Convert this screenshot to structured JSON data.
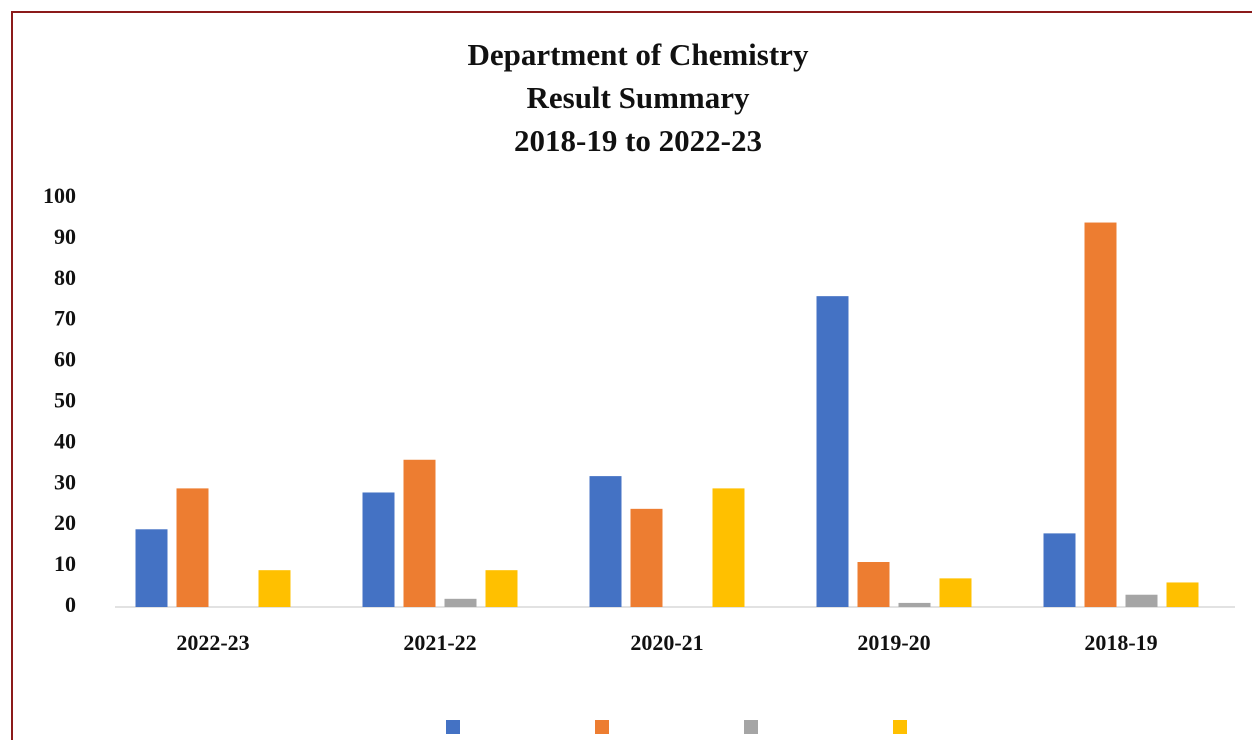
{
  "chart_data": {
    "type": "bar",
    "title": [
      "Department of Chemistry",
      "Result Summary",
      "2018-19 to 2022-23"
    ],
    "categories": [
      "2022-23",
      "2021-22",
      "2020-21",
      "2019-20",
      "2018-19"
    ],
    "series": [
      {
        "color": "#4472c4",
        "values": [
          19,
          28,
          32,
          76,
          18
        ]
      },
      {
        "color": "#ed7d31",
        "values": [
          29,
          36,
          24,
          11,
          94
        ]
      },
      {
        "color": "#a5a5a5",
        "values": [
          0,
          2,
          0,
          1,
          3
        ]
      },
      {
        "color": "#ffc000",
        "values": [
          9,
          9,
          29,
          7,
          6
        ]
      }
    ],
    "ylim": [
      0,
      100
    ],
    "yticks": [
      0,
      10,
      20,
      30,
      40,
      50,
      60,
      70,
      80,
      90,
      100
    ],
    "grid": false
  }
}
